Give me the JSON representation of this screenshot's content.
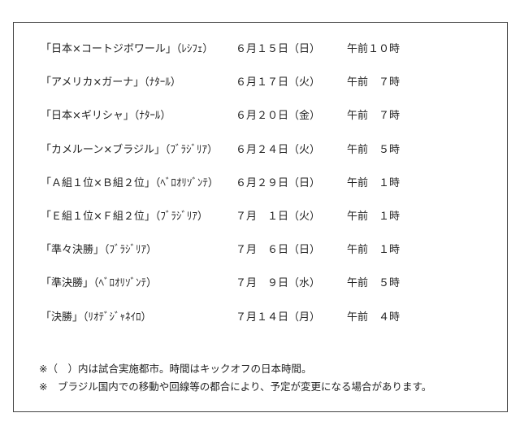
{
  "schedule": [
    {
      "match": "「日本×コートジボワール」（ﾚｼﾌｪ）",
      "date": "６月１５日（日）",
      "time": "午前１０時"
    },
    {
      "match": "「アメリカ×ガーナ」（ﾅﾀｰﾙ）",
      "date": "６月１７日（火）",
      "time": "午前　７時"
    },
    {
      "match": "「日本×ギリシャ」（ﾅﾀｰﾙ）",
      "date": "６月２０日（金）",
      "time": "午前　７時"
    },
    {
      "match": "「カメルーン×ブラジル」（ﾌﾞﾗｼﾞﾘｱ）",
      "date": "６月２４日（火）",
      "time": "午前　５時"
    },
    {
      "match": "「Ａ組１位×Ｂ組２位」（ﾍﾞﾛｵﾘｿﾞﾝﾃ）",
      "date": "６月２９日（日）",
      "time": "午前　１時"
    },
    {
      "match": "「Ｅ組１位×Ｆ組２位」（ﾌﾞﾗｼﾞﾘｱ）",
      "date": "７月　１日（火）",
      "time": "午前　１時"
    },
    {
      "match": "「準々決勝」（ﾌﾞﾗｼﾞﾘｱ）",
      "date": "７月　６日（日）",
      "time": "午前　１時"
    },
    {
      "match": "「準決勝」（ﾍﾞﾛｵﾘｿﾞﾝﾃ）",
      "date": "７月　９日（水）",
      "time": "午前　５時"
    },
    {
      "match": "「決勝」（ﾘｵﾃﾞｼﾞｬﾈｲﾛ）",
      "date": "７月１４日（月）",
      "time": "午前　４時"
    }
  ],
  "notes": [
    "※（　）内は試合実施都市。時間はキックオフの日本時間。",
    "※　ブラジル国内での移動や回線等の都合により、予定が変更になる場合があります。"
  ]
}
